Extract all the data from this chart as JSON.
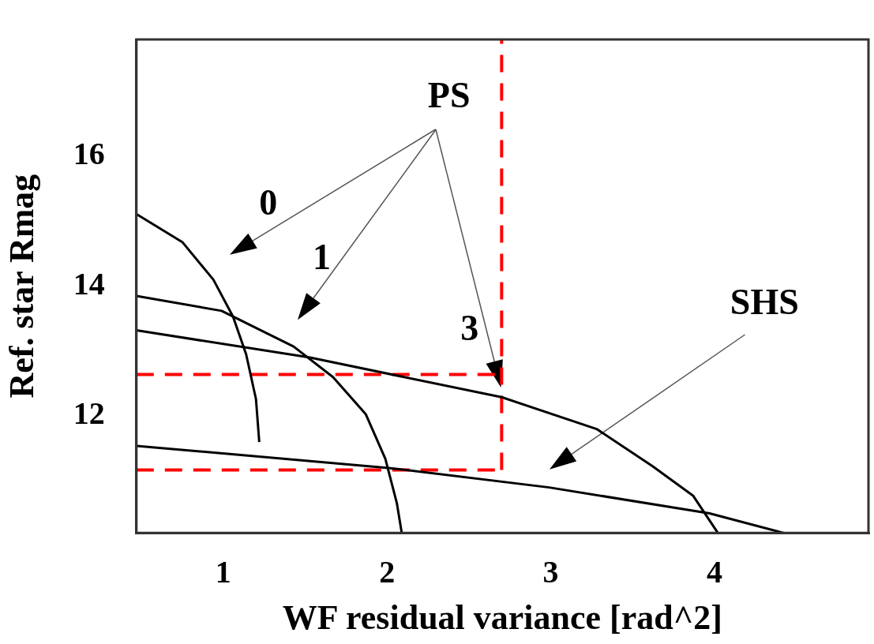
{
  "chart_data": {
    "type": "line",
    "xlabel": "WF residual variance [rad^2]",
    "ylabel": "Ref. star Rmag",
    "xlim": [
      0.47,
      4.94
    ],
    "xticks": [
      1,
      2,
      3,
      4
    ],
    "ylim": [
      10.2,
      17.8
    ],
    "yticks": [
      12,
      14,
      16
    ],
    "grid": false,
    "legend": false,
    "marker": "none",
    "series": [
      {
        "color": "#000000",
        "line_style": "solid",
        "x": [
          0.47,
          0.75,
          0.94,
          1.06,
          1.14,
          1.2,
          1.22
        ],
        "values": [
          15.11,
          14.68,
          14.1,
          13.53,
          12.95,
          12.26,
          11.6
        ]
      },
      {
        "color": "#000000",
        "line_style": "solid",
        "x": [
          0.47,
          0.99,
          1.43,
          1.67,
          1.87,
          1.99,
          2.06,
          2.09
        ],
        "values": [
          13.85,
          13.62,
          13.07,
          12.6,
          12.03,
          11.34,
          10.66,
          10.2
        ]
      },
      {
        "color": "#000000",
        "line_style": "solid",
        "x": [
          0.47,
          1.53,
          2.7,
          3.28,
          3.62,
          3.87,
          4.02
        ],
        "values": [
          13.32,
          12.9,
          12.29,
          11.8,
          11.23,
          10.77,
          10.2
        ]
      },
      {
        "color": "#000000",
        "line_style": "solid",
        "x": [
          0.47,
          2.01,
          2.99,
          3.97,
          4.42
        ],
        "values": [
          11.54,
          11.2,
          10.9,
          10.5,
          10.2
        ]
      },
      {
        "color": "#ff0000",
        "line_style": "dashed",
        "x": [
          0.47,
          2.7
        ],
        "values": [
          12.64,
          12.64
        ]
      },
      {
        "color": "#ff0000",
        "line_style": "dashed",
        "x": [
          0.47,
          2.7
        ],
        "values": [
          11.17,
          11.17
        ]
      },
      {
        "color": "#ff0000",
        "line_style": "dashed",
        "x": [
          2.7,
          2.7
        ],
        "values": [
          11.17,
          17.8
        ]
      }
    ],
    "annotations": [
      "PS",
      "0",
      "1",
      "3",
      "SHS"
    ]
  }
}
